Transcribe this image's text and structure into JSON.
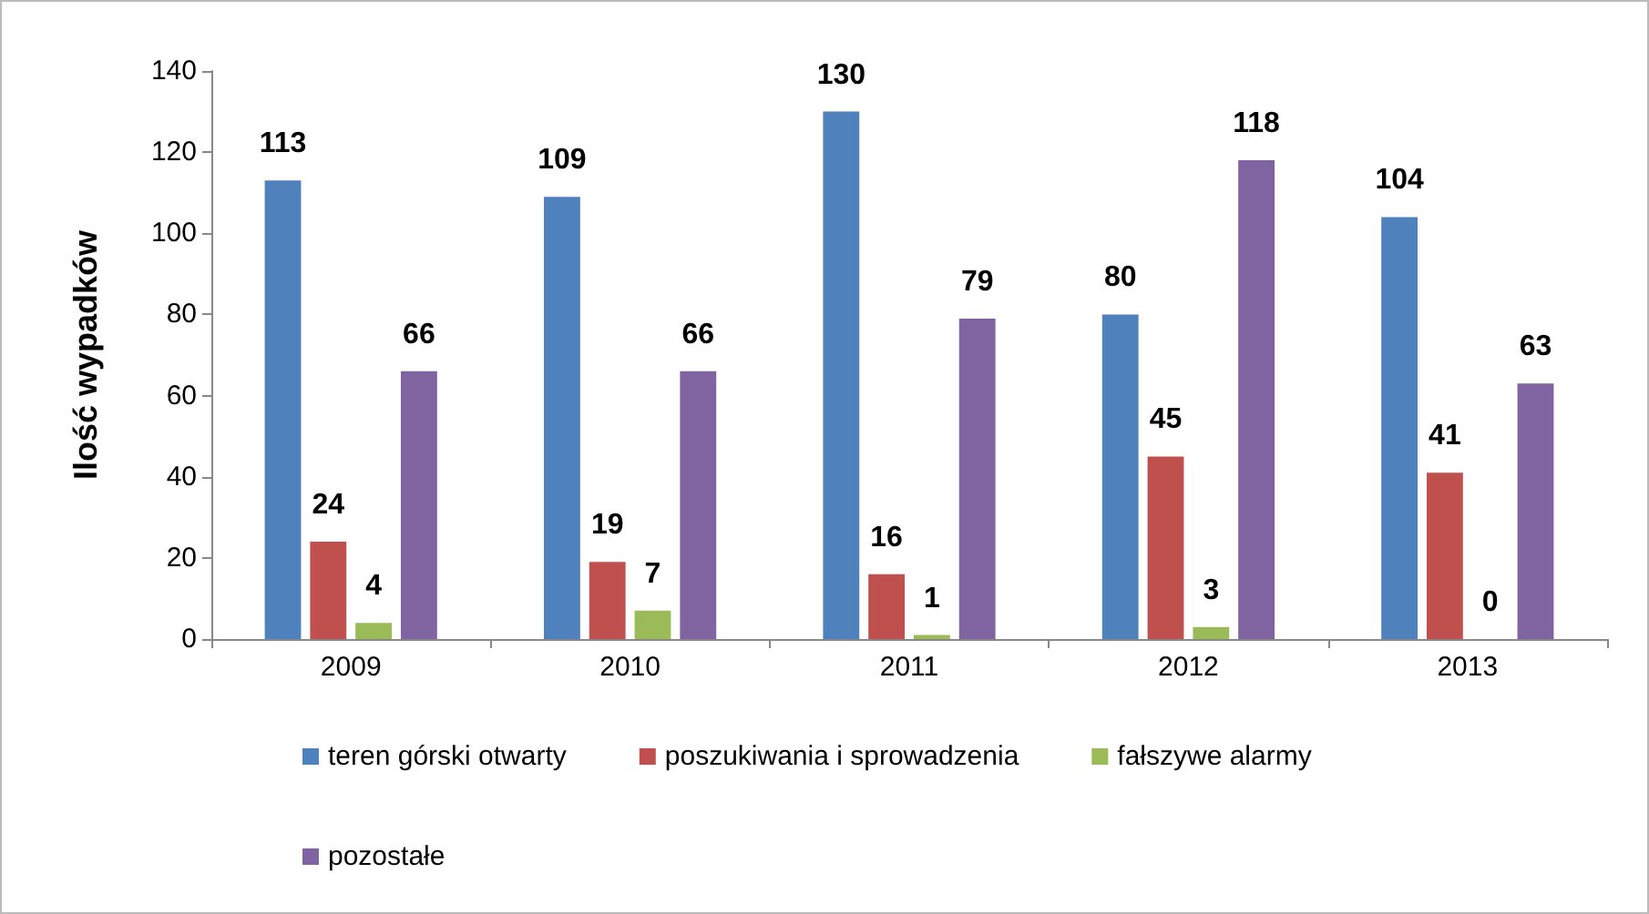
{
  "chart_data": {
    "type": "bar",
    "ylabel": "Ilość wypadków",
    "categories": [
      "2009",
      "2010",
      "2011",
      "2012",
      "2013"
    ],
    "series": [
      {
        "name": "teren górski otwarty",
        "color": "#4f81bd",
        "values": [
          113,
          109,
          130,
          80,
          104
        ]
      },
      {
        "name": "poszukiwania i sprowadzenia",
        "color": "#c0504d",
        "values": [
          24,
          19,
          16,
          45,
          41
        ]
      },
      {
        "name": "fałszywe alarmy",
        "color": "#9bbb59",
        "values": [
          4,
          7,
          1,
          3,
          0
        ]
      },
      {
        "name": "pozostałe",
        "color": "#8064a2",
        "values": [
          66,
          66,
          79,
          118,
          63
        ]
      }
    ],
    "ylim": [
      0,
      140
    ],
    "yticks": [
      0,
      20,
      40,
      60,
      80,
      100,
      120,
      140
    ],
    "data_labels": true,
    "grid": false,
    "legend": "bottom"
  }
}
